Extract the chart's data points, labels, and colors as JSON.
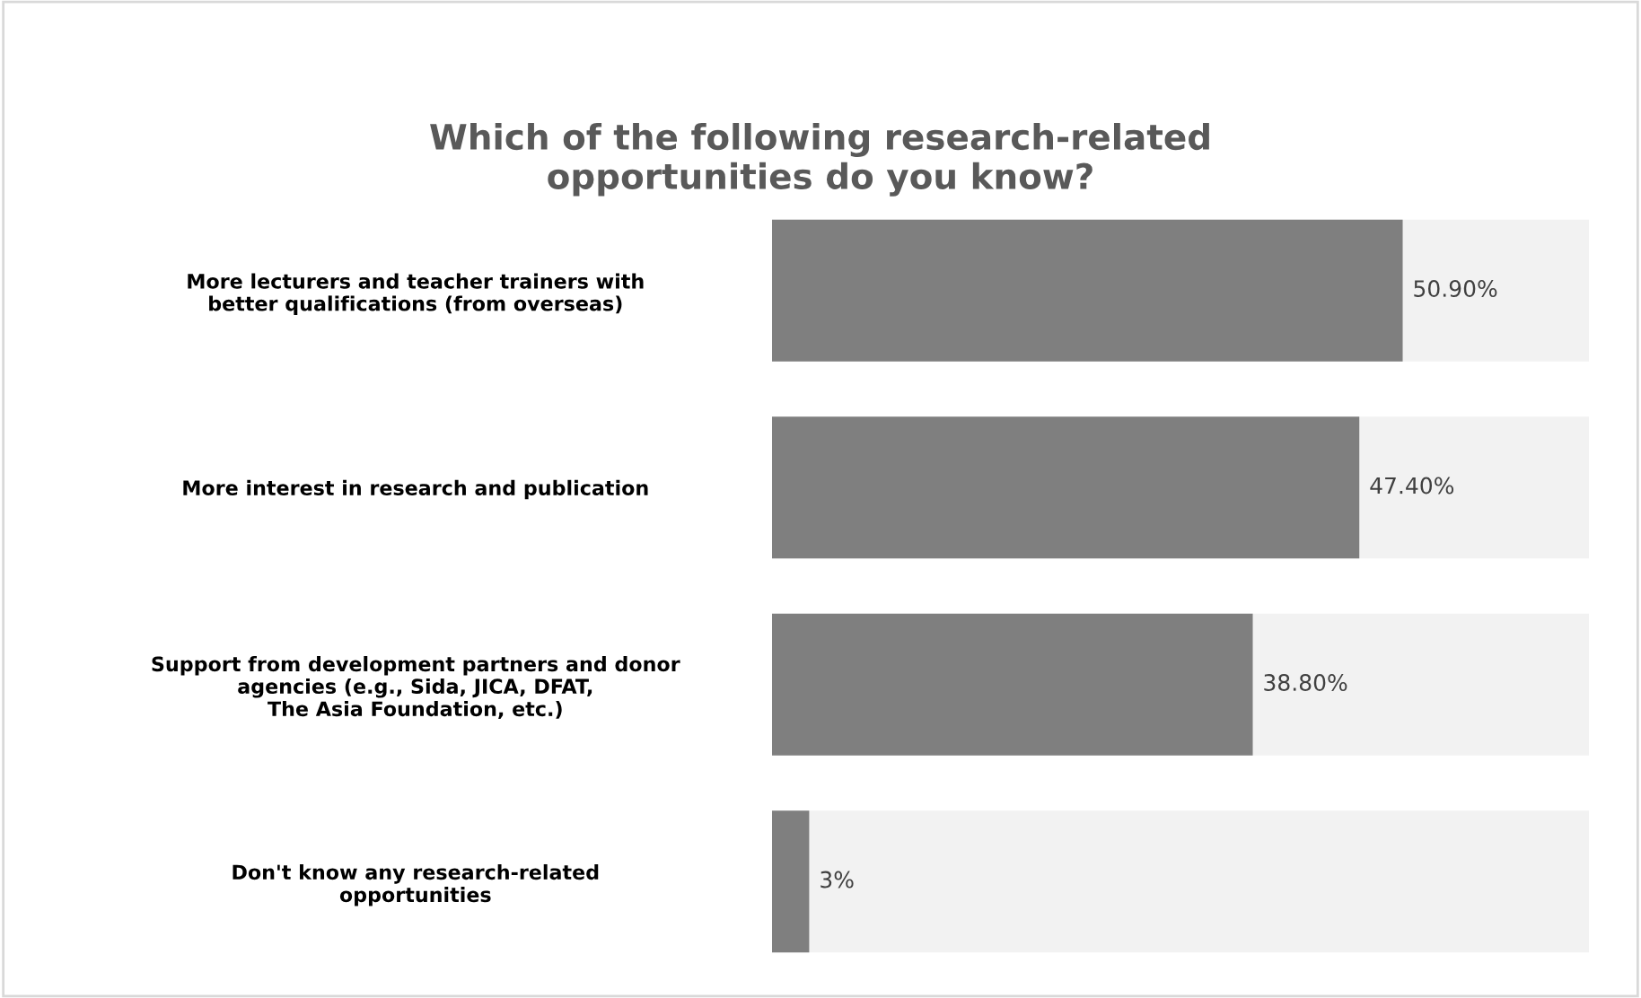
{
  "chart_data": {
    "type": "bar",
    "orientation": "horizontal",
    "title": "Which of the following research-related\nopportunities do you know?",
    "categories": [
      "More lecturers and teacher trainers with\nbetter qualifications (from overseas)",
      "More interest in research and publication",
      "Support from development partners and donor\nagencies (e.g., Sida, JICA, DFAT,\nThe Asia Foundation, etc.)",
      "Don't know any research-related\nopportunities"
    ],
    "values": [
      50.9,
      47.4,
      38.8,
      3
    ],
    "color": "#7f7f7f",
    "value_labels": [
      "50.90%",
      "47.40%",
      "38.80%",
      "3%"
    ],
    "grid": false,
    "legend": false
  }
}
